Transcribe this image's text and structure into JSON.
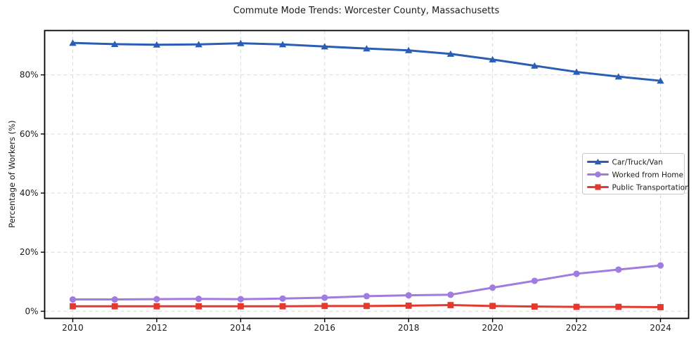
{
  "figure": {
    "title": "Commute Mode Trends: Worcester County, Massachusetts",
    "ylabel": "Percentage of Workers (%)"
  },
  "chart_data": {
    "type": "line",
    "title": "Commute Mode Trends: Worcester County, Massachusetts",
    "xlabel": "",
    "ylabel": "Percentage of Workers (%)",
    "x": [
      2010,
      2011,
      2012,
      2013,
      2014,
      2015,
      2016,
      2017,
      2018,
      2019,
      2020,
      2021,
      2022,
      2023,
      2024
    ],
    "series": [
      {
        "name": "Car/Truck/Van",
        "marker": "triangle",
        "color": "#2a5db4",
        "values": [
          90.8,
          90.4,
          90.2,
          90.3,
          90.7,
          90.3,
          89.6,
          88.9,
          88.3,
          87.1,
          85.2,
          83.1,
          81.0,
          79.4,
          78.0
        ]
      },
      {
        "name": "Worked from Home",
        "marker": "circle",
        "color": "#a07ce0",
        "values": [
          4.0,
          4.0,
          4.1,
          4.2,
          4.1,
          4.3,
          4.6,
          5.1,
          5.4,
          5.6,
          8.0,
          10.3,
          12.7,
          14.1,
          15.5
        ]
      },
      {
        "name": "Public Transportation",
        "marker": "square",
        "color": "#e3392f",
        "values": [
          1.7,
          1.7,
          1.7,
          1.7,
          1.7,
          1.7,
          1.8,
          1.8,
          1.9,
          2.1,
          1.8,
          1.6,
          1.5,
          1.5,
          1.4
        ]
      }
    ],
    "xticks": [
      2010,
      2012,
      2014,
      2016,
      2018,
      2020,
      2022,
      2024
    ],
    "yticks": [
      0,
      20,
      40,
      60,
      80
    ],
    "ytick_suffix": "%",
    "xlim": [
      2009.33,
      2024.67
    ],
    "ylim": [
      -2.4,
      95
    ],
    "grid": true,
    "grid_style": "dashed",
    "legend_position": "right-middle",
    "colors": {
      "grid": "#d9d9d9",
      "axis_frame": "#000000",
      "tick_text": "#1a1a1a",
      "legend_border": "#c7c7c7",
      "legend_bg": "#ffffff"
    }
  }
}
